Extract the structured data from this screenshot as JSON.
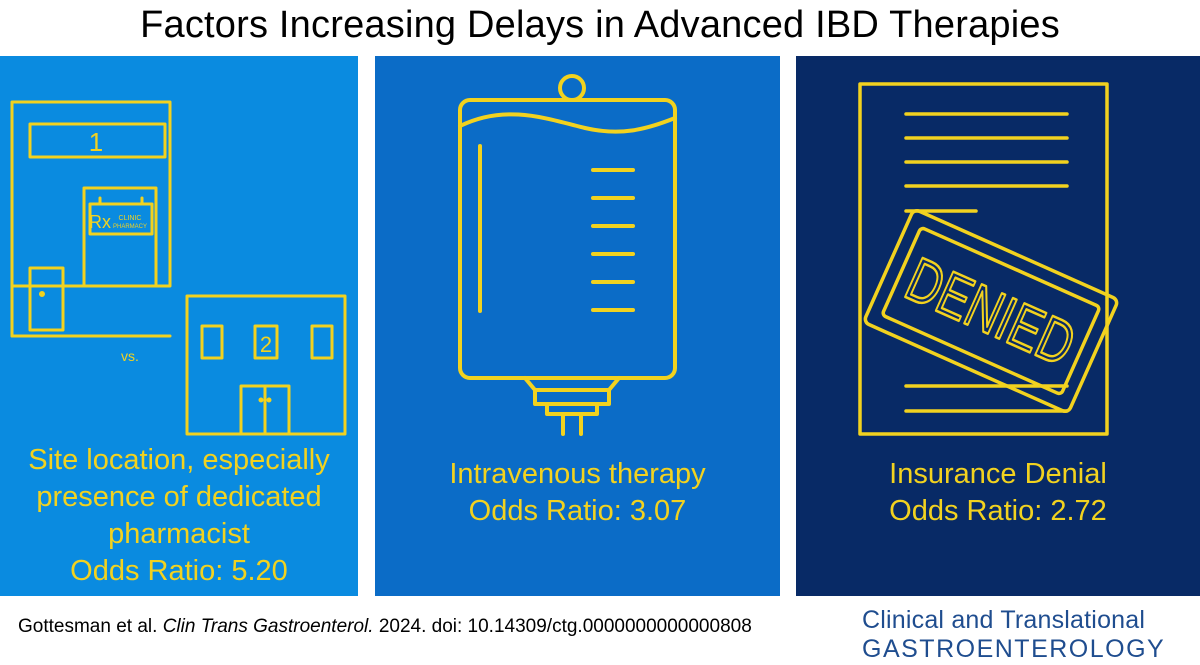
{
  "title": "Factors Increasing Delays in Advanced IBD Therapies",
  "panels": [
    {
      "icon": "clinic-buildings-icon",
      "building1_number": "1",
      "sign_rx": "Rx",
      "sign_line1": "CLINIC",
      "sign_line2": "PHARMACY",
      "vs_text": "vs.",
      "building2_number": "2",
      "lines": [
        "Site location, especially",
        "presence of dedicated",
        "pharmacist"
      ],
      "odds_ratio": "Odds Ratio: 5.20"
    },
    {
      "icon": "iv-bag-icon",
      "lines": [
        "Intravenous therapy"
      ],
      "odds_ratio": "Odds Ratio: 3.07"
    },
    {
      "icon": "denied-document-icon",
      "stamp_text": "DENIED",
      "lines": [
        "Insurance Denial"
      ],
      "odds_ratio": "Odds Ratio: 2.72"
    }
  ],
  "citation": {
    "authors": "Gottesman et al.",
    "journal": "Clin Trans Gastroenterol.",
    "rest": "2024. doi: 10.14309/ctg.0000000000000808"
  },
  "journal_logo": {
    "line1": "Clinical and Translational",
    "line2": "GASTROENTEROLOGY"
  },
  "colors": {
    "panel1": "#0a8be0",
    "panel2": "#0b6cc7",
    "panel3": "#082a66",
    "accent": "#f2d21f",
    "logo": "#1f4d8f"
  }
}
